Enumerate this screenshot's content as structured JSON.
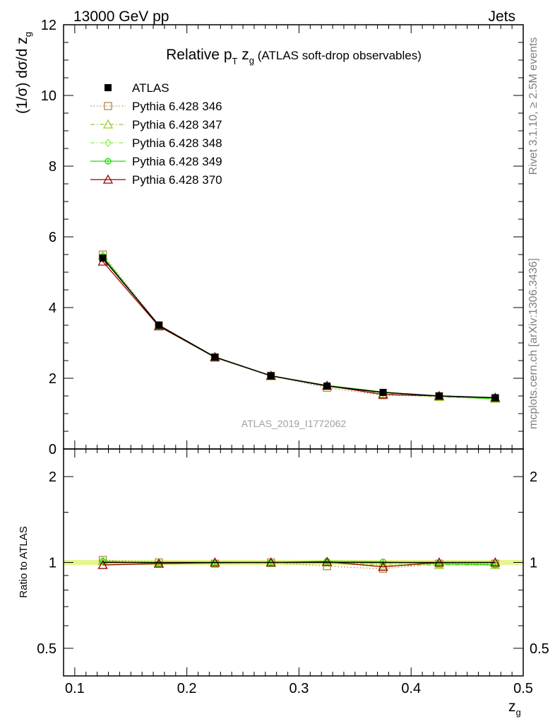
{
  "header": {
    "left": "13000 GeV pp",
    "right": "Jets"
  },
  "title": {
    "main": "Relative p",
    "main_sub": "T",
    "var": " z",
    "var_sub": "g",
    "tail": " (ATLAS soft-drop observables)"
  },
  "side_labels": {
    "rivet": "Rivet 3.1.10, ≥ 2.5M events",
    "mcplots": "mcplots.cern.ch [arXiv:1306.3436]"
  },
  "analysis_id": "ATLAS_2019_I1772062",
  "axes": {
    "ylabel_main": "(1/σ) dσ/d z",
    "ylabel_main_sub": "g",
    "ylabel_ratio": "Ratio to ATLAS",
    "xlabel": "z",
    "xlabel_sub": "g"
  },
  "chart_data": [
    {
      "type": "line",
      "panel": "main",
      "x": [
        0.125,
        0.175,
        0.225,
        0.275,
        0.325,
        0.375,
        0.425,
        0.475
      ],
      "xlim": [
        0.09,
        0.5
      ],
      "ylim": [
        0,
        12
      ],
      "xticks": [
        "0.1",
        "0.2",
        "0.3",
        "0.4",
        "0.5"
      ],
      "xtick_values": [
        0.1,
        0.2,
        0.3,
        0.4,
        0.5
      ],
      "yticks": [
        "0",
        "2",
        "4",
        "6",
        "8",
        "10",
        "12"
      ],
      "ytick_values": [
        0,
        2,
        4,
        6,
        8,
        10,
        12
      ],
      "legend_position": "top-left",
      "series": [
        {
          "name": "ATLAS",
          "color": "#000000",
          "style": "solid",
          "marker": "filled-square",
          "values": [
            5.4,
            3.5,
            2.6,
            2.07,
            1.78,
            1.6,
            1.5,
            1.45
          ]
        },
        {
          "name": "Pythia 6.428 346",
          "color": "#b8864b",
          "style": "dotted",
          "marker": "open-square",
          "values": [
            5.5,
            3.5,
            2.58,
            2.07,
            1.73,
            1.52,
            1.49,
            1.43
          ]
        },
        {
          "name": "Pythia 6.428 347",
          "color": "#9acd32",
          "style": "dashdot",
          "marker": "open-triangle",
          "values": [
            5.47,
            3.48,
            2.59,
            2.06,
            1.78,
            1.56,
            1.47,
            1.42
          ]
        },
        {
          "name": "Pythia 6.428 348",
          "color": "#90ee50",
          "style": "dashdot",
          "marker": "open-diamond",
          "values": [
            5.47,
            3.48,
            2.59,
            2.06,
            1.78,
            1.58,
            1.48,
            1.42
          ]
        },
        {
          "name": "Pythia 6.428 349",
          "color": "#22dd00",
          "style": "solid",
          "marker": "open-circle-cross",
          "values": [
            5.45,
            3.47,
            2.59,
            2.07,
            1.8,
            1.61,
            1.49,
            1.42
          ]
        },
        {
          "name": "Pythia 6.428 370",
          "color": "#990000",
          "style": "solid",
          "marker": "open-triangle",
          "values": [
            5.3,
            3.47,
            2.6,
            2.07,
            1.79,
            1.54,
            1.5,
            1.45
          ]
        }
      ]
    },
    {
      "type": "line",
      "panel": "ratio",
      "x": [
        0.125,
        0.175,
        0.225,
        0.275,
        0.325,
        0.375,
        0.425,
        0.475
      ],
      "xlim": [
        0.09,
        0.5
      ],
      "ylim": [
        0.4,
        2.5
      ],
      "log_y": true,
      "yticks": [
        "0.5",
        "1",
        "2"
      ],
      "ytick_values": [
        0.5,
        1,
        2
      ],
      "band": {
        "low": 0.98,
        "high": 1.02,
        "color": "#e6f58c"
      },
      "series": [
        {
          "name": "ATLAS",
          "color": "#000000",
          "style": "solid",
          "marker": "none",
          "values": [
            1.0,
            1.0,
            1.0,
            1.0,
            1.0,
            1.0,
            1.0,
            1.0
          ]
        },
        {
          "name": "Pythia 6.428 346",
          "color": "#b8864b",
          "style": "dotted",
          "marker": "open-square",
          "values": [
            1.02,
            1.0,
            0.99,
            1.0,
            0.97,
            0.95,
            0.99,
            0.99
          ]
        },
        {
          "name": "Pythia 6.428 347",
          "color": "#9acd32",
          "style": "dashdot",
          "marker": "open-triangle",
          "values": [
            1.01,
            0.995,
            0.995,
            0.995,
            1.0,
            0.975,
            0.98,
            0.98
          ]
        },
        {
          "name": "Pythia 6.428 348",
          "color": "#90ee50",
          "style": "dashdot",
          "marker": "open-diamond",
          "values": [
            1.01,
            0.995,
            0.995,
            0.995,
            1.0,
            0.99,
            0.985,
            0.98
          ]
        },
        {
          "name": "Pythia 6.428 349",
          "color": "#22dd00",
          "style": "solid",
          "marker": "open-circle-cross",
          "values": [
            1.01,
            0.99,
            0.995,
            1.0,
            1.01,
            1.005,
            0.99,
            0.98
          ]
        },
        {
          "name": "Pythia 6.428 370",
          "color": "#990000",
          "style": "solid",
          "marker": "open-triangle",
          "values": [
            0.98,
            0.99,
            1.0,
            1.0,
            1.005,
            0.965,
            1.0,
            1.0
          ]
        }
      ]
    }
  ]
}
